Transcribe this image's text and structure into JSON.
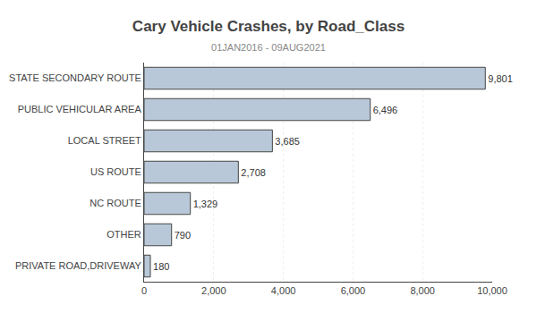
{
  "chart_data": {
    "type": "bar",
    "orientation": "horizontal",
    "title": "Cary Vehicle Crashes, by Road_Class",
    "subtitle": "01JAN2016 - 09AUG2021",
    "categories": [
      "PRIVATE ROAD,DRIVEWAY",
      "OTHER",
      "NC ROUTE",
      "US ROUTE",
      "LOCAL STREET",
      "PUBLIC VEHICULAR AREA",
      "STATE SECONDARY ROUTE"
    ],
    "values": [
      180,
      790,
      1329,
      2708,
      3685,
      6496,
      9801
    ],
    "value_labels": [
      "180",
      "790",
      "1,329",
      "2,708",
      "3,685",
      "6,496",
      "9,801"
    ],
    "data_labels": true,
    "color": "#b8c8d8",
    "xlim": [
      0,
      10000
    ],
    "xticks": [
      0,
      {
        "value": 2000,
        "label": "2,000"
      },
      {
        "value": 4000,
        "label": "4,000"
      },
      {
        "value": 6000,
        "label": "6,000"
      },
      {
        "value": 8000,
        "label": "8,000"
      },
      {
        "value": 10000,
        "label": "10,000"
      }
    ],
    "grid": true
  }
}
